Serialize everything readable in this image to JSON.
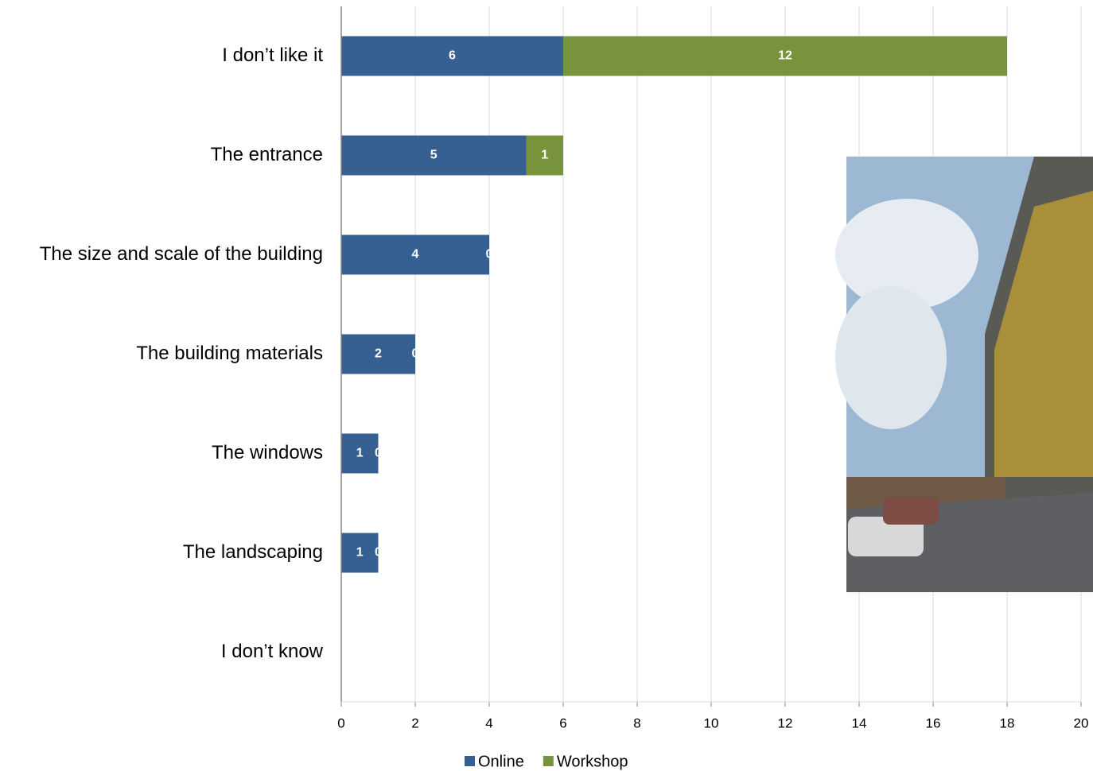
{
  "chart_data": {
    "type": "stacked-barh",
    "categories": [
      "I don’t like it",
      "The entrance",
      "The size and scale of the building",
      "The building materials",
      "The windows",
      "The landscaping",
      "I don’t know"
    ],
    "series": [
      {
        "name": "Online",
        "color": "#376092",
        "values": [
          6,
          5,
          4,
          2,
          1,
          1,
          0
        ]
      },
      {
        "name": "Workshop",
        "color": "#77933c",
        "values": [
          12,
          1,
          0,
          0,
          0,
          0,
          0
        ]
      }
    ],
    "xlim": [
      0,
      20
    ],
    "xticks": [
      0,
      2,
      4,
      6,
      8,
      10,
      12,
      14,
      16,
      18,
      20
    ],
    "grid": true,
    "legend": "bottom"
  }
}
